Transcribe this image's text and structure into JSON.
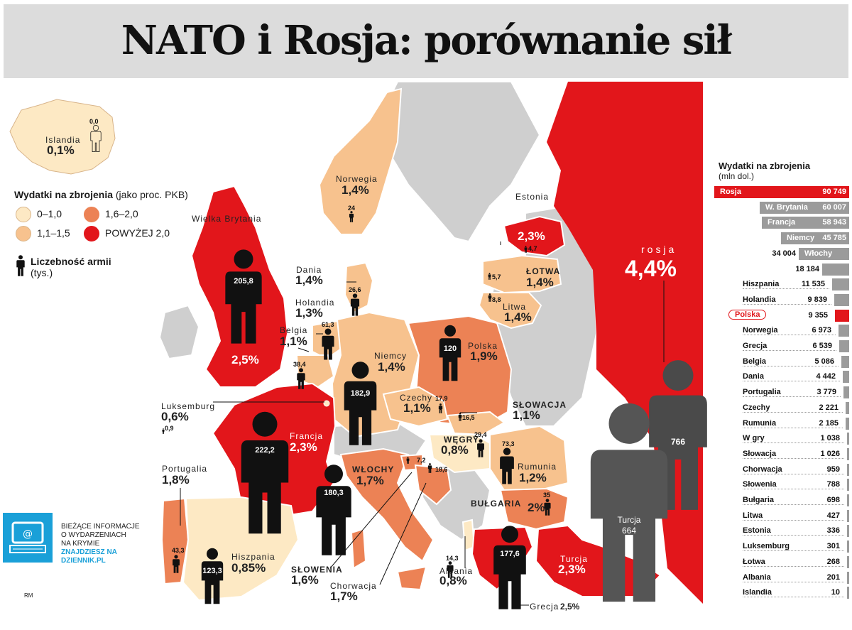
{
  "title": "NATO i Rosja: porównanie sił",
  "legend": {
    "title": "Wydatki na zbrojenia",
    "subtitle": "(jako proc. PKB)",
    "ranges": [
      {
        "label": "0–1,0",
        "color": "#fde9c4"
      },
      {
        "label": "1,1–1,5",
        "color": "#f7c28e"
      },
      {
        "label": "1,6–2,0",
        "color": "#ec8255"
      },
      {
        "label": "POWYŻEJ 2,0",
        "color": "#e2161b"
      }
    ],
    "army_title": "Liczebność armii",
    "army_sub": "(tys.)"
  },
  "countries": {
    "islandia": {
      "name": "Islandia",
      "pct": "0,1%",
      "army": "0,0"
    },
    "norwegia": {
      "name": "Norwegia",
      "pct": "1,4%",
      "army": "24"
    },
    "estonia": {
      "name": "Estonia",
      "pct": "2,3%",
      "army": "4,7"
    },
    "lotwa": {
      "name": "ŁOTWA",
      "pct": "1,4%",
      "army": "5,7"
    },
    "litwa": {
      "name": "Litwa",
      "pct": "1,4%",
      "army": "8,8"
    },
    "rosja": {
      "name": "rosja",
      "pct": "4,4%",
      "army": "766"
    },
    "wielka_brytania": {
      "name": "Wielka Brytania",
      "pct": "2,5%",
      "army": "205,8"
    },
    "dania": {
      "name": "Dania",
      "pct": "1,4%",
      "army": "26,6"
    },
    "holandia": {
      "name": "Holandia",
      "pct": "1,3%",
      "army": "61,3"
    },
    "belgia": {
      "name": "Belgia",
      "pct": "1,1%",
      "army": "38,4"
    },
    "niemcy": {
      "name": "Niemcy",
      "pct": "1,4%",
      "army": "182,9"
    },
    "polska": {
      "name": "Polska",
      "pct": "1,9%",
      "army": "120"
    },
    "czechy": {
      "name": "Czechy",
      "pct": "1,1%",
      "army": "17,9"
    },
    "slowacja": {
      "name": "SŁOWACJA",
      "pct": "1,1%",
      "army": "16,5"
    },
    "luksemburg": {
      "name": "Luksemburg",
      "pct": "0,6%",
      "army": "0,9"
    },
    "francja": {
      "name": "Francja",
      "pct": "2,3%",
      "army": "222,2"
    },
    "wegry": {
      "name": "WĘGRY",
      "pct": "0,8%",
      "army": "29,4"
    },
    "rumunia": {
      "name": "Rumunia",
      "pct": "1,2%",
      "army": "73,3"
    },
    "wlochy": {
      "name": "WŁOCHY",
      "pct": "1,7%",
      "army": "180,3"
    },
    "slowenia": {
      "name": "SŁOWENIA",
      "pct": "1,6%",
      "army": "7,2"
    },
    "chorwacja": {
      "name": "Chorwacja",
      "pct": "1,7%",
      "army": "18,6"
    },
    "bulgaria": {
      "name": "BUŁGARIA",
      "pct": "2%",
      "army": "35"
    },
    "portugalia": {
      "name": "Portugalia",
      "pct": "1,8%",
      "army": "43,3"
    },
    "hiszpania": {
      "name": "Hiszpania",
      "pct": "0,85%",
      "army": "123,3"
    },
    "albania": {
      "name": "Albania",
      "pct": "0,8%",
      "army": "14,3"
    },
    "grecja": {
      "name": "Grecja",
      "pct": "2,5%",
      "army": "177,6"
    },
    "turcja": {
      "name": "Turcja",
      "pct": "2,3%",
      "army": "664"
    }
  },
  "table": {
    "title": "Wydatki na zbrojenia",
    "subtitle": "(mln dol.)",
    "rows": [
      {
        "name": "Rosja",
        "value": "90 749",
        "num": 90749,
        "color": "#e2161b"
      },
      {
        "name": "W. Brytania",
        "value": "60 007",
        "num": 60007,
        "color": "#9b9b9b"
      },
      {
        "name": "Francja",
        "value": "58 943",
        "num": 58943,
        "color": "#9b9b9b"
      },
      {
        "name": "Niemcy",
        "value": "45 785",
        "num": 45785,
        "color": "#9b9b9b"
      },
      {
        "name": "Włochy",
        "value": "34 004",
        "num": 34004,
        "color": "#9b9b9b"
      },
      {
        "name": "",
        "value": "18 184",
        "num": 18184,
        "color": "#9b9b9b"
      },
      {
        "name": "Hiszpania",
        "value": "11 535",
        "num": 11535,
        "color": "#9b9b9b"
      },
      {
        "name": "Holandia",
        "value": "9 839",
        "num": 9839,
        "color": "#9b9b9b"
      },
      {
        "name": "Polska",
        "value": "9 355",
        "num": 9355,
        "color": "#e2161b"
      },
      {
        "name": "Norwegia",
        "value": "6 973",
        "num": 6973,
        "color": "#9b9b9b"
      },
      {
        "name": "Grecja",
        "value": "6 539",
        "num": 6539,
        "color": "#9b9b9b"
      },
      {
        "name": "Belgia",
        "value": "5 086",
        "num": 5086,
        "color": "#9b9b9b"
      },
      {
        "name": "Dania",
        "value": "4 442",
        "num": 4442,
        "color": "#9b9b9b"
      },
      {
        "name": "Portugalia",
        "value": "3 779",
        "num": 3779,
        "color": "#9b9b9b"
      },
      {
        "name": "Czechy",
        "value": "2 221",
        "num": 2221,
        "color": "#9b9b9b"
      },
      {
        "name": "Rumunia",
        "value": "2 185",
        "num": 2185,
        "color": "#9b9b9b"
      },
      {
        "name": "W gry",
        "value": "1 038",
        "num": 1038,
        "color": "#9b9b9b"
      },
      {
        "name": "Słowacja",
        "value": "1 026",
        "num": 1026,
        "color": "#9b9b9b"
      },
      {
        "name": "Chorwacja",
        "value": "959",
        "num": 959,
        "color": "#9b9b9b"
      },
      {
        "name": "Słowenia",
        "value": "788",
        "num": 788,
        "color": "#9b9b9b"
      },
      {
        "name": "Bułgaria",
        "value": "698",
        "num": 698,
        "color": "#9b9b9b"
      },
      {
        "name": "Litwa",
        "value": "427",
        "num": 427,
        "color": "#9b9b9b"
      },
      {
        "name": "Estonia",
        "value": "336",
        "num": 336,
        "color": "#9b9b9b"
      },
      {
        "name": "Luksemburg",
        "value": "301",
        "num": 301,
        "color": "#9b9b9b"
      },
      {
        "name": "Łotwa",
        "value": "268",
        "num": 268,
        "color": "#9b9b9b"
      },
      {
        "name": "Albania",
        "value": "201",
        "num": 201,
        "color": "#9b9b9b"
      },
      {
        "name": "Islandia",
        "value": "10",
        "num": 10,
        "color": "#9b9b9b"
      }
    ]
  },
  "info": {
    "line1": "BIEŻĄCE INFORMACJE",
    "line2": "O WYDARZENIACH",
    "line3": "NA KRYMIE",
    "line4": "ZNAJDZIESZ NA",
    "link": "DZIENNIK.PL"
  },
  "credit": "RM",
  "icons": [
    "soldier-icon",
    "computer-icon"
  ]
}
